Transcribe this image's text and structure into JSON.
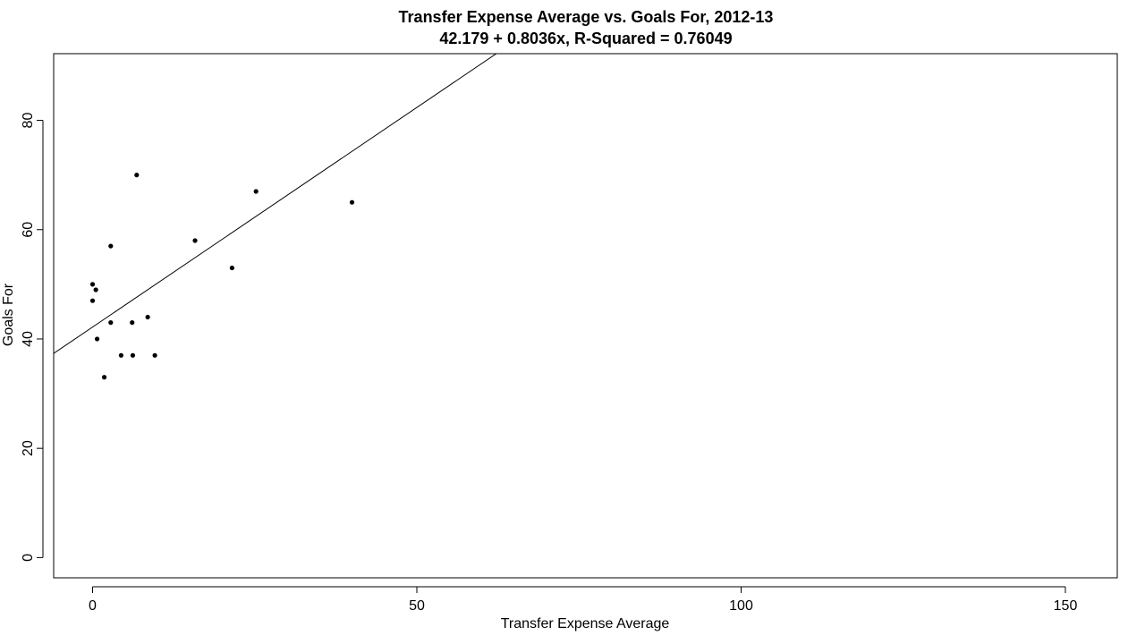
{
  "chart_data": {
    "type": "scatter",
    "title": "Transfer Expense Average vs. Goals For, 2012-13",
    "subtitle": "42.179 + 0.8036x, R-Squared = 0.76049",
    "xlabel": "Transfer Expense Average",
    "ylabel": "Goals For",
    "xlim": [
      -6,
      158
    ],
    "ylim": [
      -3.7,
      92.2
    ],
    "x_ticks": [
      0,
      50,
      100,
      150
    ],
    "y_ticks": [
      0,
      20,
      40,
      60,
      80
    ],
    "grid": false,
    "legend": "none",
    "regression": {
      "intercept": 42.179,
      "slope": 0.8036
    },
    "points": [
      {
        "x": 0.0,
        "y": 50
      },
      {
        "x": 0.0,
        "y": 47
      },
      {
        "x": 0.5,
        "y": 49
      },
      {
        "x": 0.7,
        "y": 40
      },
      {
        "x": 1.8,
        "y": 33
      },
      {
        "x": 2.8,
        "y": 57
      },
      {
        "x": 2.8,
        "y": 43
      },
      {
        "x": 4.4,
        "y": 37
      },
      {
        "x": 6.1,
        "y": 43
      },
      {
        "x": 6.2,
        "y": 37
      },
      {
        "x": 6.8,
        "y": 70
      },
      {
        "x": 8.5,
        "y": 44
      },
      {
        "x": 9.6,
        "y": 37
      },
      {
        "x": 15.8,
        "y": 58
      },
      {
        "x": 21.5,
        "y": 53
      },
      {
        "x": 25.2,
        "y": 67
      },
      {
        "x": 40.0,
        "y": 65
      }
    ]
  }
}
